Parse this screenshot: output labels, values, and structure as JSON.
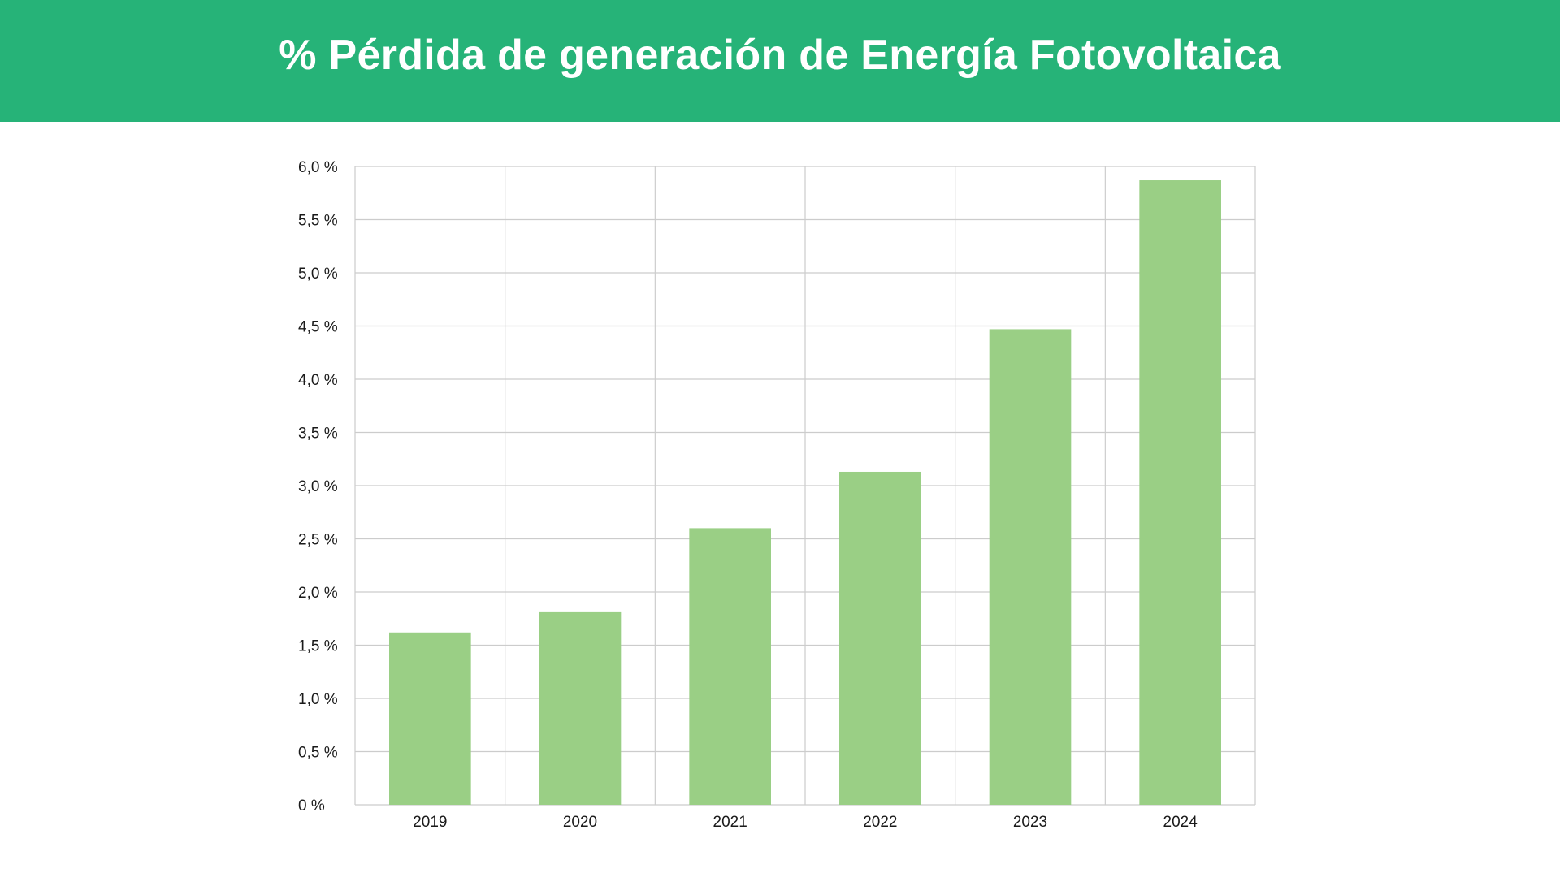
{
  "theme": {
    "header_color": "#26b378",
    "bar_color": "#9acf85",
    "grid_color": "#cccccc",
    "text_color": "#1a1a1a"
  },
  "header": {
    "title": "% Pérdida de generación de Energía Fotovoltaica"
  },
  "chart_data": {
    "type": "bar",
    "title": "% Pérdida de generación de Energía Fotovoltaica",
    "xlabel": "",
    "ylabel": "",
    "categories": [
      "2019",
      "2020",
      "2021",
      "2022",
      "2023",
      "2024"
    ],
    "values": [
      1.62,
      1.81,
      2.6,
      3.13,
      4.47,
      5.87
    ],
    "ylim": [
      0,
      6.0
    ],
    "y_ticks": [
      0,
      0.5,
      1.0,
      1.5,
      2.0,
      2.5,
      3.0,
      3.5,
      4.0,
      4.5,
      5.0,
      5.5,
      6.0
    ],
    "y_tick_labels": [
      "0 %",
      "0,5 %",
      "1,0 %",
      "1,5 %",
      "2,0 %",
      "2,5 %",
      "3,0 %",
      "3,5 %",
      "4,0 %",
      "4,5 %",
      "5,0 %",
      "5,5 %",
      "6,0 %"
    ],
    "grid": true,
    "legend": "none"
  }
}
